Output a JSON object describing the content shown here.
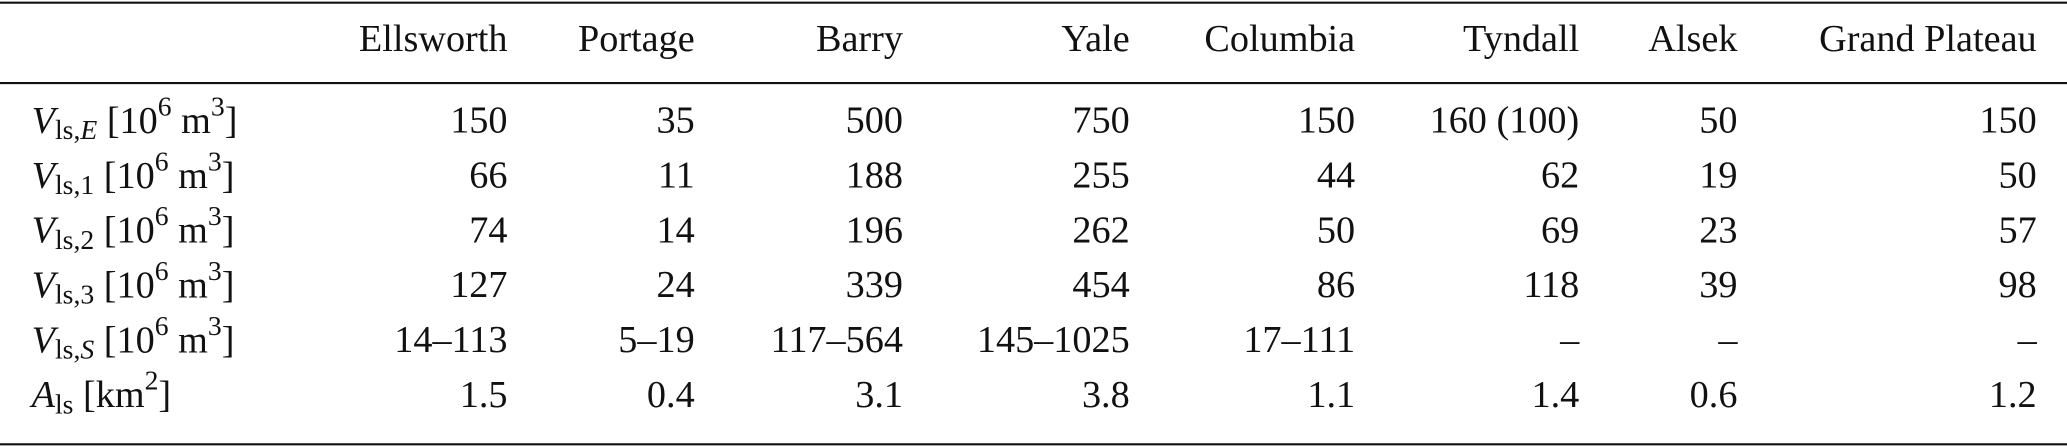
{
  "table": {
    "columns": [
      "Ellsworth",
      "Portage",
      "Barry",
      "Yale",
      "Columbia",
      "Tyndall",
      "Alsek",
      "Grand Plateau"
    ],
    "rows": [
      {
        "label": [
          {
            "t": "V",
            "s": "i"
          },
          {
            "t": "ls,",
            "s": "sub"
          },
          {
            "t": "E",
            "s": "subi"
          },
          {
            "t": " [10"
          },
          {
            "t": "6",
            "s": "sup"
          },
          {
            "t": " m"
          },
          {
            "t": "3",
            "s": "sup"
          },
          {
            "t": "]"
          }
        ],
        "cells": [
          150,
          35,
          500,
          750,
          150,
          "160 (100)",
          50,
          150
        ]
      },
      {
        "label": [
          {
            "t": "V",
            "s": "i"
          },
          {
            "t": "ls,1",
            "s": "sub"
          },
          {
            "t": " [10"
          },
          {
            "t": "6",
            "s": "sup"
          },
          {
            "t": " m"
          },
          {
            "t": "3",
            "s": "sup"
          },
          {
            "t": "]"
          }
        ],
        "cells": [
          66,
          11,
          188,
          255,
          44,
          62,
          19,
          50
        ]
      },
      {
        "label": [
          {
            "t": "V",
            "s": "i"
          },
          {
            "t": "ls,2",
            "s": "sub"
          },
          {
            "t": " [10"
          },
          {
            "t": "6",
            "s": "sup"
          },
          {
            "t": " m"
          },
          {
            "t": "3",
            "s": "sup"
          },
          {
            "t": "]"
          }
        ],
        "cells": [
          74,
          14,
          196,
          262,
          50,
          69,
          23,
          57
        ]
      },
      {
        "label": [
          {
            "t": "V",
            "s": "i"
          },
          {
            "t": "ls,3",
            "s": "sub"
          },
          {
            "t": " [10"
          },
          {
            "t": "6",
            "s": "sup"
          },
          {
            "t": " m"
          },
          {
            "t": "3",
            "s": "sup"
          },
          {
            "t": "]"
          }
        ],
        "cells": [
          127,
          24,
          339,
          454,
          86,
          118,
          39,
          98
        ]
      },
      {
        "label": [
          {
            "t": "V",
            "s": "i"
          },
          {
            "t": "ls,",
            "s": "sub"
          },
          {
            "t": "S",
            "s": "subi"
          },
          {
            "t": " [10"
          },
          {
            "t": "6",
            "s": "sup"
          },
          {
            "t": " m"
          },
          {
            "t": "3",
            "s": "sup"
          },
          {
            "t": "]"
          }
        ],
        "cells": [
          "14–113",
          "5–19",
          "117–564",
          "145–1025",
          "17–111",
          "–",
          "–",
          "–"
        ]
      },
      {
        "label": [
          {
            "t": "A",
            "s": "i"
          },
          {
            "t": "ls",
            "s": "sub"
          },
          {
            "t": " [km"
          },
          {
            "t": "2",
            "s": "sup"
          },
          {
            "t": "]"
          }
        ],
        "cells": [
          1.5,
          0.4,
          3.1,
          3.8,
          1.1,
          1.4,
          0.6,
          1.2
        ]
      }
    ]
  }
}
